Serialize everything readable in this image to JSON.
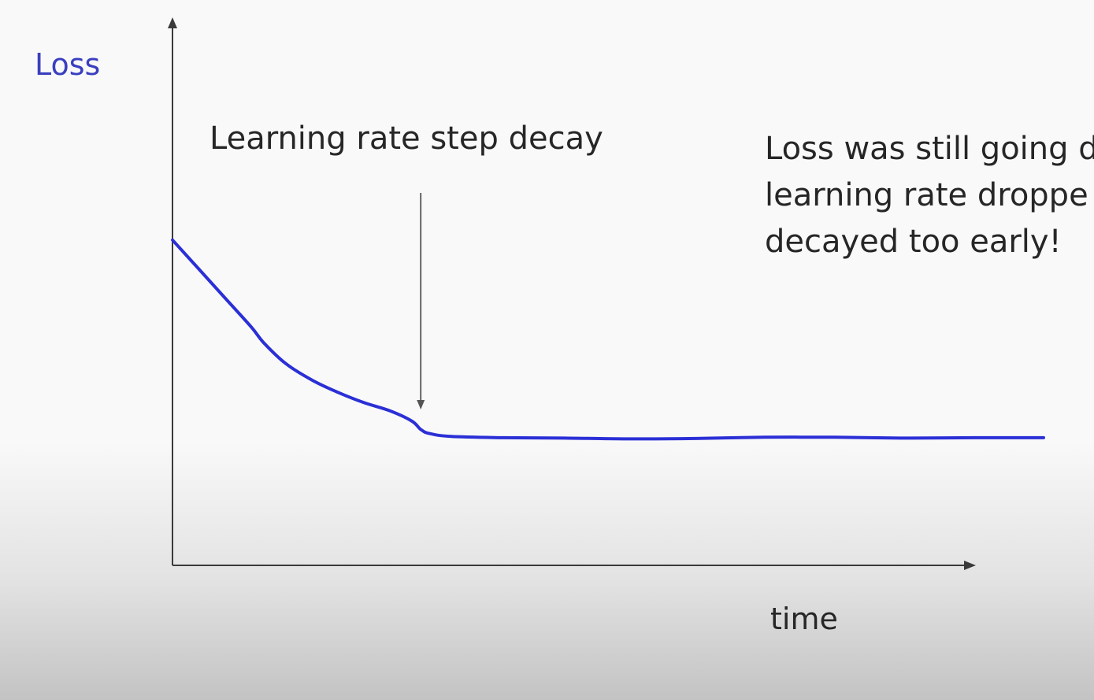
{
  "chart_data": {
    "type": "line",
    "title": "",
    "ylabel": "Loss",
    "xlabel": "time",
    "xlim": [
      0,
      100
    ],
    "ylim": [
      0,
      100
    ],
    "grid": false,
    "legend": "none",
    "line_color": "#2b2fd6",
    "series": [
      {
        "points": [
          [
            0,
            79
          ],
          [
            3,
            72
          ],
          [
            6,
            65
          ],
          [
            9,
            58
          ],
          [
            10.5,
            54
          ],
          [
            13,
            49
          ],
          [
            16,
            45
          ],
          [
            19,
            42
          ],
          [
            22,
            39.5
          ],
          [
            25,
            37.5
          ],
          [
            27.5,
            35
          ],
          [
            28.5,
            33
          ],
          [
            29.5,
            32
          ],
          [
            32,
            31.3
          ],
          [
            38,
            31
          ],
          [
            45,
            30.9
          ],
          [
            53,
            30.7
          ],
          [
            60,
            30.8
          ],
          [
            68,
            31.1
          ],
          [
            76,
            31.1
          ],
          [
            84,
            30.9
          ],
          [
            92,
            31
          ],
          [
            100,
            31
          ]
        ]
      }
    ],
    "annotations": [
      {
        "id": "step_decay",
        "text": "Learning rate step decay",
        "x": 28.5
      }
    ]
  },
  "note": {
    "lines": [
      "Loss was still going d",
      "learning rate droppe",
      "decayed too early!"
    ]
  }
}
